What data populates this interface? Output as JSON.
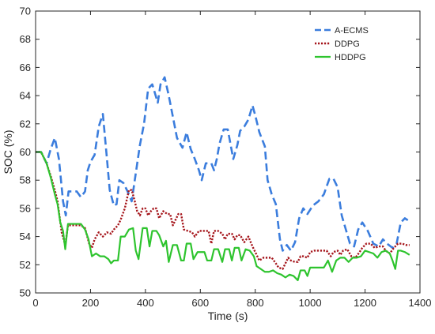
{
  "chart_data": {
    "type": "line",
    "xlabel": "Time (s)",
    "ylabel": "SOC (%)",
    "xlim": [
      0,
      1400
    ],
    "ylim": [
      50,
      70
    ],
    "xticks": [
      0,
      200,
      400,
      600,
      800,
      1000,
      1200,
      1400
    ],
    "yticks": [
      50,
      52,
      54,
      56,
      58,
      60,
      62,
      64,
      66,
      68,
      70
    ],
    "grid": false,
    "legend_position": "top-right",
    "series": [
      {
        "name": "A-ECMS",
        "color": "#3b7ddd",
        "dash": "dashed",
        "points": [
          [
            0,
            60
          ],
          [
            20,
            60
          ],
          [
            40,
            59.2
          ],
          [
            55,
            60.2
          ],
          [
            70,
            61
          ],
          [
            85,
            59.5
          ],
          [
            100,
            56.5
          ],
          [
            110,
            55.5
          ],
          [
            120,
            57.2
          ],
          [
            135,
            57.2
          ],
          [
            150,
            57.2
          ],
          [
            165,
            56.8
          ],
          [
            180,
            57.2
          ],
          [
            190,
            58.7
          ],
          [
            200,
            59.3
          ],
          [
            215,
            59.8
          ],
          [
            230,
            61.8
          ],
          [
            245,
            62.7
          ],
          [
            260,
            59.5
          ],
          [
            270,
            57.3
          ],
          [
            285,
            56.2
          ],
          [
            295,
            56.3
          ],
          [
            305,
            58
          ],
          [
            320,
            57.8
          ],
          [
            335,
            57.2
          ],
          [
            350,
            56.5
          ],
          [
            365,
            58.5
          ],
          [
            380,
            60.5
          ],
          [
            395,
            62
          ],
          [
            410,
            64.5
          ],
          [
            425,
            64.8
          ],
          [
            445,
            63.5
          ],
          [
            455,
            64.8
          ],
          [
            470,
            65.3
          ],
          [
            485,
            64
          ],
          [
            495,
            63
          ],
          [
            515,
            61
          ],
          [
            535,
            60.3
          ],
          [
            550,
            61.4
          ],
          [
            565,
            60.2
          ],
          [
            580,
            59.5
          ],
          [
            595,
            58.7
          ],
          [
            605,
            58
          ],
          [
            620,
            59.2
          ],
          [
            640,
            59.2
          ],
          [
            650,
            58.7
          ],
          [
            660,
            59.5
          ],
          [
            670,
            60.6
          ],
          [
            685,
            61.6
          ],
          [
            700,
            61.6
          ],
          [
            720,
            59.5
          ],
          [
            735,
            60.5
          ],
          [
            745,
            61.5
          ],
          [
            760,
            61.8
          ],
          [
            775,
            62.3
          ],
          [
            790,
            63.3
          ],
          [
            800,
            62.6
          ],
          [
            815,
            61.4
          ],
          [
            835,
            60.4
          ],
          [
            845,
            58
          ],
          [
            860,
            57
          ],
          [
            875,
            56.3
          ],
          [
            890,
            53.8
          ],
          [
            900,
            53
          ],
          [
            915,
            53.4
          ],
          [
            930,
            53
          ],
          [
            945,
            53.6
          ],
          [
            960,
            55.3
          ],
          [
            975,
            56
          ],
          [
            990,
            55.6
          ],
          [
            1010,
            56.2
          ],
          [
            1030,
            56.5
          ],
          [
            1050,
            57
          ],
          [
            1070,
            58.1
          ],
          [
            1085,
            58.1
          ],
          [
            1100,
            57.5
          ],
          [
            1115,
            55.5
          ],
          [
            1130,
            54.5
          ],
          [
            1145,
            53.5
          ],
          [
            1160,
            53.3
          ],
          [
            1175,
            54.5
          ],
          [
            1190,
            55
          ],
          [
            1210,
            54.4
          ],
          [
            1230,
            53.5
          ],
          [
            1250,
            53.3
          ],
          [
            1265,
            53.8
          ],
          [
            1280,
            53.5
          ],
          [
            1300,
            53.2
          ],
          [
            1315,
            53.5
          ],
          [
            1330,
            55
          ],
          [
            1345,
            55.3
          ],
          [
            1360,
            55.1
          ]
        ]
      },
      {
        "name": "DDPG",
        "color": "#a5151b",
        "dash": "dotted",
        "points": [
          [
            0,
            60
          ],
          [
            20,
            60
          ],
          [
            40,
            59.2
          ],
          [
            55,
            58.3
          ],
          [
            70,
            57.3
          ],
          [
            80,
            56.5
          ],
          [
            95,
            54.3
          ],
          [
            108,
            53.4
          ],
          [
            118,
            54.8
          ],
          [
            135,
            54.8
          ],
          [
            150,
            54.8
          ],
          [
            165,
            54.8
          ],
          [
            180,
            54.6
          ],
          [
            195,
            53.5
          ],
          [
            205,
            53.2
          ],
          [
            215,
            53.8
          ],
          [
            230,
            54.3
          ],
          [
            245,
            54
          ],
          [
            260,
            54.3
          ],
          [
            275,
            54.2
          ],
          [
            285,
            54.5
          ],
          [
            300,
            54.8
          ],
          [
            310,
            55.2
          ],
          [
            325,
            56
          ],
          [
            340,
            57.3
          ],
          [
            350,
            57.3
          ],
          [
            360,
            56.6
          ],
          [
            370,
            55.8
          ],
          [
            380,
            55.5
          ],
          [
            390,
            56
          ],
          [
            400,
            56
          ],
          [
            410,
            55.5
          ],
          [
            420,
            55.8
          ],
          [
            430,
            56
          ],
          [
            440,
            56
          ],
          [
            450,
            55.3
          ],
          [
            465,
            55.8
          ],
          [
            480,
            55.6
          ],
          [
            490,
            55.6
          ],
          [
            500,
            54.8
          ],
          [
            510,
            55.2
          ],
          [
            520,
            55.6
          ],
          [
            530,
            55.6
          ],
          [
            540,
            54.5
          ],
          [
            555,
            54.4
          ],
          [
            570,
            54.3
          ],
          [
            580,
            54
          ],
          [
            595,
            54.4
          ],
          [
            605,
            54.4
          ],
          [
            620,
            54.4
          ],
          [
            630,
            54.4
          ],
          [
            640,
            53.5
          ],
          [
            650,
            54.4
          ],
          [
            665,
            54.4
          ],
          [
            680,
            54.2
          ],
          [
            690,
            53.8
          ],
          [
            700,
            54.2
          ],
          [
            715,
            54.2
          ],
          [
            725,
            53.8
          ],
          [
            735,
            54.1
          ],
          [
            745,
            54.1
          ],
          [
            760,
            53.6
          ],
          [
            775,
            54
          ],
          [
            790,
            53.3
          ],
          [
            805,
            52.7
          ],
          [
            815,
            52.3
          ],
          [
            830,
            52.5
          ],
          [
            845,
            52.5
          ],
          [
            860,
            52.5
          ],
          [
            875,
            52.1
          ],
          [
            885,
            51.8
          ],
          [
            900,
            51.7
          ],
          [
            910,
            52.1
          ],
          [
            920,
            52.5
          ],
          [
            930,
            52.3
          ],
          [
            945,
            52.2
          ],
          [
            955,
            52.2
          ],
          [
            965,
            52.6
          ],
          [
            975,
            52.6
          ],
          [
            990,
            52.5
          ],
          [
            1000,
            52.9
          ],
          [
            1015,
            53
          ],
          [
            1030,
            53
          ],
          [
            1045,
            53
          ],
          [
            1060,
            53
          ],
          [
            1075,
            52.6
          ],
          [
            1085,
            52.9
          ],
          [
            1100,
            53
          ],
          [
            1110,
            52.7
          ],
          [
            1120,
            53
          ],
          [
            1135,
            53.1
          ],
          [
            1150,
            52.6
          ],
          [
            1165,
            52.5
          ],
          [
            1180,
            52.9
          ],
          [
            1190,
            53.2
          ],
          [
            1205,
            53.5
          ],
          [
            1220,
            53.5
          ],
          [
            1235,
            53.2
          ],
          [
            1250,
            53.3
          ],
          [
            1265,
            53.3
          ],
          [
            1275,
            53
          ],
          [
            1290,
            52.8
          ],
          [
            1305,
            53.2
          ],
          [
            1320,
            53.5
          ],
          [
            1335,
            53.5
          ],
          [
            1350,
            53.4
          ],
          [
            1362,
            53.4
          ]
        ]
      },
      {
        "name": "HDDPG",
        "color": "#2ec42e",
        "dash": "solid",
        "points": [
          [
            0,
            60
          ],
          [
            20,
            60
          ],
          [
            40,
            59.2
          ],
          [
            55,
            58.2
          ],
          [
            70,
            57
          ],
          [
            80,
            56.3
          ],
          [
            90,
            55
          ],
          [
            100,
            54.4
          ],
          [
            108,
            53.1
          ],
          [
            118,
            54.9
          ],
          [
            135,
            54.9
          ],
          [
            150,
            54.9
          ],
          [
            165,
            54.9
          ],
          [
            180,
            54.5
          ],
          [
            193,
            53.8
          ],
          [
            205,
            52.6
          ],
          [
            220,
            52.8
          ],
          [
            235,
            52.6
          ],
          [
            250,
            52.6
          ],
          [
            265,
            52.4
          ],
          [
            275,
            52.1
          ],
          [
            285,
            52.3
          ],
          [
            300,
            52.3
          ],
          [
            310,
            54
          ],
          [
            325,
            54
          ],
          [
            340,
            54.5
          ],
          [
            355,
            54.6
          ],
          [
            365,
            53
          ],
          [
            375,
            52.4
          ],
          [
            390,
            54.6
          ],
          [
            405,
            54.6
          ],
          [
            415,
            53.3
          ],
          [
            425,
            54.4
          ],
          [
            440,
            54.4
          ],
          [
            450,
            54.1
          ],
          [
            465,
            53.3
          ],
          [
            475,
            53.7
          ],
          [
            485,
            52.2
          ],
          [
            500,
            53.4
          ],
          [
            515,
            53.4
          ],
          [
            530,
            52.3
          ],
          [
            540,
            52.3
          ],
          [
            550,
            53.5
          ],
          [
            565,
            53.5
          ],
          [
            575,
            52.4
          ],
          [
            590,
            52.9
          ],
          [
            600,
            52.9
          ],
          [
            615,
            52.9
          ],
          [
            625,
            52.3
          ],
          [
            640,
            52.3
          ],
          [
            650,
            53.1
          ],
          [
            665,
            53.1
          ],
          [
            680,
            52.2
          ],
          [
            690,
            53.1
          ],
          [
            705,
            53.1
          ],
          [
            715,
            52.3
          ],
          [
            725,
            53.2
          ],
          [
            740,
            53.2
          ],
          [
            750,
            52.3
          ],
          [
            765,
            53.1
          ],
          [
            780,
            53
          ],
          [
            795,
            52.6
          ],
          [
            805,
            51.9
          ],
          [
            820,
            51.7
          ],
          [
            835,
            51.5
          ],
          [
            850,
            51.5
          ],
          [
            865,
            51.6
          ],
          [
            880,
            51.4
          ],
          [
            895,
            51.3
          ],
          [
            910,
            51.1
          ],
          [
            925,
            51.3
          ],
          [
            940,
            51.2
          ],
          [
            955,
            50.9
          ],
          [
            965,
            51.6
          ],
          [
            980,
            51.6
          ],
          [
            990,
            51.2
          ],
          [
            1000,
            51.8
          ],
          [
            1020,
            51.8
          ],
          [
            1035,
            51.8
          ],
          [
            1050,
            51.8
          ],
          [
            1065,
            52.3
          ],
          [
            1080,
            51.5
          ],
          [
            1095,
            52.3
          ],
          [
            1110,
            52.5
          ],
          [
            1125,
            52.5
          ],
          [
            1140,
            52.2
          ],
          [
            1155,
            52.5
          ],
          [
            1170,
            52.5
          ],
          [
            1185,
            52.6
          ],
          [
            1200,
            53
          ],
          [
            1215,
            52.9
          ],
          [
            1230,
            52.8
          ],
          [
            1245,
            52.5
          ],
          [
            1260,
            52.9
          ],
          [
            1275,
            53
          ],
          [
            1290,
            52.8
          ],
          [
            1300,
            52.3
          ],
          [
            1310,
            51.7
          ],
          [
            1320,
            53
          ],
          [
            1330,
            53
          ],
          [
            1345,
            52.9
          ],
          [
            1362,
            52.7
          ]
        ]
      }
    ]
  }
}
